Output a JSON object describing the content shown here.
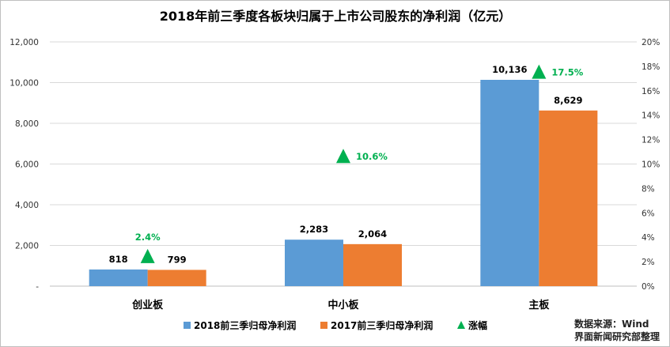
{
  "chart_data": {
    "type": "bar",
    "title": "2018年前三季度各板块归属于上市公司股东的净利润（亿元）",
    "categories": [
      "创业板",
      "中小板",
      "主板"
    ],
    "series": [
      {
        "name": "2018前三季归母净利润",
        "values": [
          818,
          2283,
          10136
        ],
        "labels": [
          "818",
          "2,283",
          "10,136"
        ],
        "color": "#5b9bd5"
      },
      {
        "name": "2017前三季归母净利润",
        "values": [
          799,
          2064,
          8629
        ],
        "labels": [
          "799",
          "2,064",
          "8,629"
        ],
        "color": "#ed7d31"
      }
    ],
    "growth": {
      "name": "涨幅",
      "values": [
        2.4,
        10.6,
        17.5
      ],
      "labels": [
        "2.4%",
        "10.6%",
        "17.5%"
      ],
      "color": "#00b050",
      "axis": "right"
    },
    "ylim": [
      0,
      12000
    ],
    "y_ticks": [
      0,
      2000,
      4000,
      6000,
      8000,
      10000,
      12000
    ],
    "y_tick_labels": [
      "-",
      "2,000",
      "4,000",
      "6,000",
      "8,000",
      "10,000",
      "12,000"
    ],
    "y2lim": [
      0,
      20
    ],
    "y2_ticks": [
      0,
      2,
      4,
      6,
      8,
      10,
      12,
      14,
      16,
      18,
      20
    ],
    "y2_tick_labels": [
      "0%",
      "2%",
      "4%",
      "6%",
      "8%",
      "10%",
      "12%",
      "14%",
      "16%",
      "18%",
      "20%"
    ],
    "grid": true,
    "legend_position": "bottom"
  },
  "source_note": [
    "数据来源：Wind",
    "界面新闻研究部整理"
  ]
}
